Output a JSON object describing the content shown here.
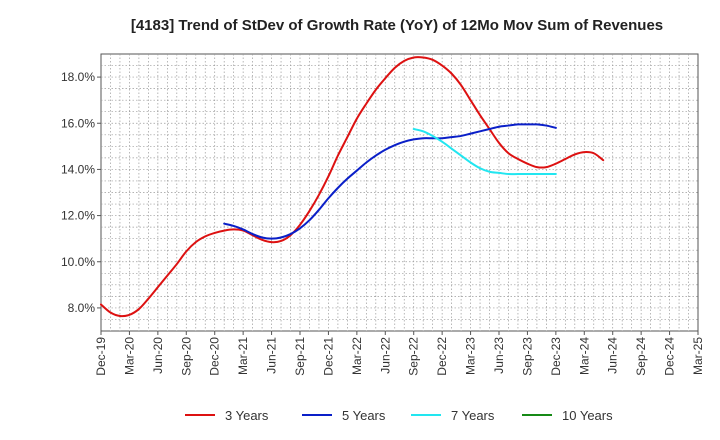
{
  "chart_data": {
    "type": "line",
    "title": "[4183]  Trend of StDev of Growth Rate (YoY) of 12Mo Mov Sum of Revenues",
    "xlabel": "",
    "ylabel": "",
    "ylim": [
      7.0,
      19.0
    ],
    "grid": true,
    "legend": "bottom",
    "x_ticks": [
      "Dec-19",
      "Mar-20",
      "Jun-20",
      "Sep-20",
      "Dec-20",
      "Mar-21",
      "Jun-21",
      "Sep-21",
      "Dec-21",
      "Mar-22",
      "Jun-22",
      "Sep-22",
      "Dec-22",
      "Mar-23",
      "Jun-23",
      "Sep-23",
      "Dec-23",
      "Mar-24",
      "Jun-24",
      "Sep-24",
      "Dec-24",
      "Mar-25"
    ],
    "y_ticks": [
      {
        "value": 8,
        "label": "8.0%"
      },
      {
        "value": 10,
        "label": "10.0%"
      },
      {
        "value": 12,
        "label": "12.0%"
      },
      {
        "value": 14,
        "label": "14.0%"
      },
      {
        "value": 16,
        "label": "16.0%"
      },
      {
        "value": 18,
        "label": "18.0%"
      }
    ],
    "series": [
      {
        "name": "3 Years",
        "color": "#dd1111",
        "points": [
          [
            0,
            8.15
          ],
          [
            1,
            7.8
          ],
          [
            2,
            7.65
          ],
          [
            3,
            7.7
          ],
          [
            4,
            7.95
          ],
          [
            5,
            8.4
          ],
          [
            6,
            8.9
          ],
          [
            7,
            9.4
          ],
          [
            8,
            9.9
          ],
          [
            9,
            10.45
          ],
          [
            10,
            10.85
          ],
          [
            11,
            11.1
          ],
          [
            12,
            11.25
          ],
          [
            13,
            11.35
          ],
          [
            14,
            11.4
          ],
          [
            15,
            11.35
          ],
          [
            16,
            11.15
          ],
          [
            17,
            10.95
          ],
          [
            18,
            10.85
          ],
          [
            19,
            10.9
          ],
          [
            20,
            11.15
          ],
          [
            21,
            11.6
          ],
          [
            22,
            12.2
          ],
          [
            23,
            12.9
          ],
          [
            24,
            13.7
          ],
          [
            25,
            14.6
          ],
          [
            26,
            15.4
          ],
          [
            27,
            16.2
          ],
          [
            28,
            16.85
          ],
          [
            29,
            17.45
          ],
          [
            30,
            17.95
          ],
          [
            31,
            18.4
          ],
          [
            32,
            18.7
          ],
          [
            33,
            18.85
          ],
          [
            34,
            18.85
          ],
          [
            35,
            18.75
          ],
          [
            36,
            18.5
          ],
          [
            37,
            18.15
          ],
          [
            38,
            17.65
          ],
          [
            39,
            17.0
          ],
          [
            40,
            16.35
          ],
          [
            41,
            15.75
          ],
          [
            42,
            15.15
          ],
          [
            43,
            14.7
          ],
          [
            44,
            14.45
          ],
          [
            45,
            14.25
          ],
          [
            46,
            14.1
          ],
          [
            47,
            14.1
          ],
          [
            48,
            14.25
          ],
          [
            49,
            14.45
          ],
          [
            50,
            14.65
          ],
          [
            51,
            14.75
          ],
          [
            52,
            14.7
          ],
          [
            53,
            14.4
          ]
        ]
      },
      {
        "name": "5 Years",
        "color": "#0a1fc8",
        "points": [
          [
            13,
            11.65
          ],
          [
            14,
            11.55
          ],
          [
            15,
            11.4
          ],
          [
            16,
            11.2
          ],
          [
            17,
            11.05
          ],
          [
            18,
            11.0
          ],
          [
            19,
            11.05
          ],
          [
            20,
            11.2
          ],
          [
            21,
            11.45
          ],
          [
            22,
            11.8
          ],
          [
            23,
            12.25
          ],
          [
            24,
            12.75
          ],
          [
            25,
            13.2
          ],
          [
            26,
            13.6
          ],
          [
            27,
            13.95
          ],
          [
            28,
            14.3
          ],
          [
            29,
            14.6
          ],
          [
            30,
            14.85
          ],
          [
            31,
            15.05
          ],
          [
            32,
            15.2
          ],
          [
            33,
            15.3
          ],
          [
            34,
            15.35
          ],
          [
            35,
            15.35
          ],
          [
            36,
            15.35
          ],
          [
            37,
            15.4
          ],
          [
            38,
            15.45
          ],
          [
            39,
            15.55
          ],
          [
            40,
            15.65
          ],
          [
            41,
            15.75
          ],
          [
            42,
            15.85
          ],
          [
            43,
            15.9
          ],
          [
            44,
            15.95
          ],
          [
            45,
            15.95
          ],
          [
            46,
            15.95
          ],
          [
            47,
            15.9
          ],
          [
            48,
            15.8
          ]
        ]
      },
      {
        "name": "7 Years",
        "color": "#22e6f0",
        "points": [
          [
            33,
            15.75
          ],
          [
            34,
            15.65
          ],
          [
            35,
            15.45
          ],
          [
            36,
            15.2
          ],
          [
            37,
            14.9
          ],
          [
            38,
            14.6
          ],
          [
            39,
            14.3
          ],
          [
            40,
            14.05
          ],
          [
            41,
            13.9
          ],
          [
            42,
            13.85
          ],
          [
            43,
            13.8
          ],
          [
            44,
            13.8
          ],
          [
            45,
            13.8
          ],
          [
            46,
            13.8
          ],
          [
            47,
            13.8
          ],
          [
            48,
            13.8
          ]
        ]
      },
      {
        "name": "10 Years",
        "color": "#168a16",
        "points": []
      }
    ]
  }
}
